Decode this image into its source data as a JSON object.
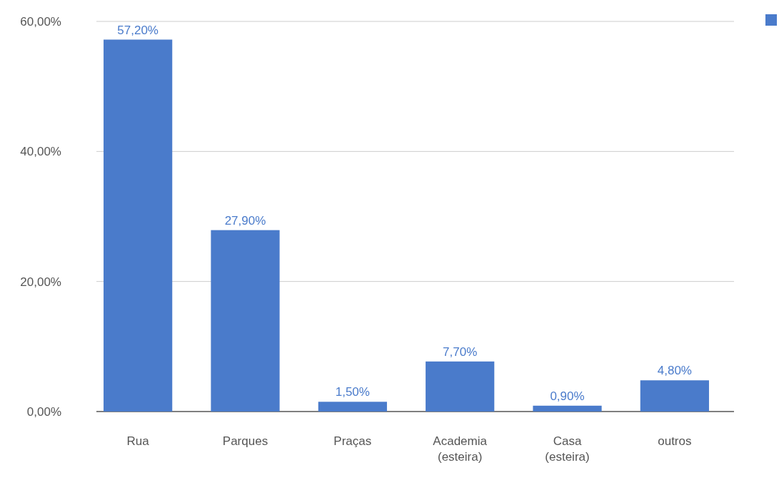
{
  "chart_data": {
    "type": "bar",
    "categories": [
      "Rua",
      "Parques",
      "Praças",
      "Academia (esteira)",
      "Casa (esteira)",
      "outros"
    ],
    "values": [
      57.2,
      27.9,
      1.5,
      7.7,
      0.9,
      4.8
    ],
    "value_labels": [
      "57,20%",
      "27,90%",
      "1,50%",
      "7,70%",
      "0,90%",
      "4,80%"
    ],
    "color": "#4a7bcb",
    "ylim": [
      0,
      60
    ],
    "yticks": [
      {
        "value": 0,
        "label": "0,00%"
      },
      {
        "value": 20,
        "label": "20,00%"
      },
      {
        "value": 40,
        "label": "40,00%"
      },
      {
        "value": 60,
        "label": "60,00%"
      }
    ],
    "grid": "y"
  }
}
